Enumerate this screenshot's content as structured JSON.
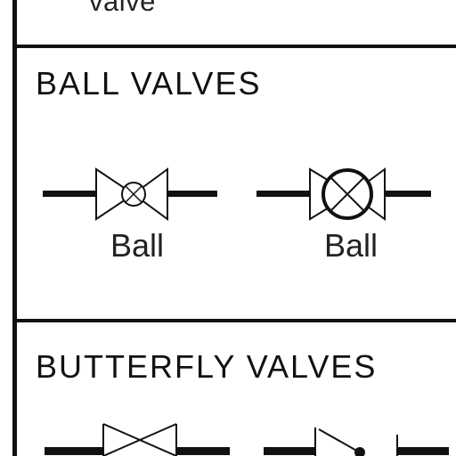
{
  "top_section": {
    "cut_label": "valve"
  },
  "ball_section": {
    "heading": "BALL VALVES",
    "symbols": [
      {
        "caption": "Ball",
        "icon": "ball-valve-symbol"
      },
      {
        "caption": "Ball",
        "icon": "ball-valve-symbol"
      }
    ]
  },
  "butterfly_section": {
    "heading": "BUTTERFLY VALVES",
    "symbols": [
      {
        "icon": "butterfly-valve-symbol"
      },
      {
        "icon": "butterfly-valve-symbol"
      }
    ]
  },
  "colors": {
    "ink": "#111111",
    "background": "#ffffff"
  }
}
